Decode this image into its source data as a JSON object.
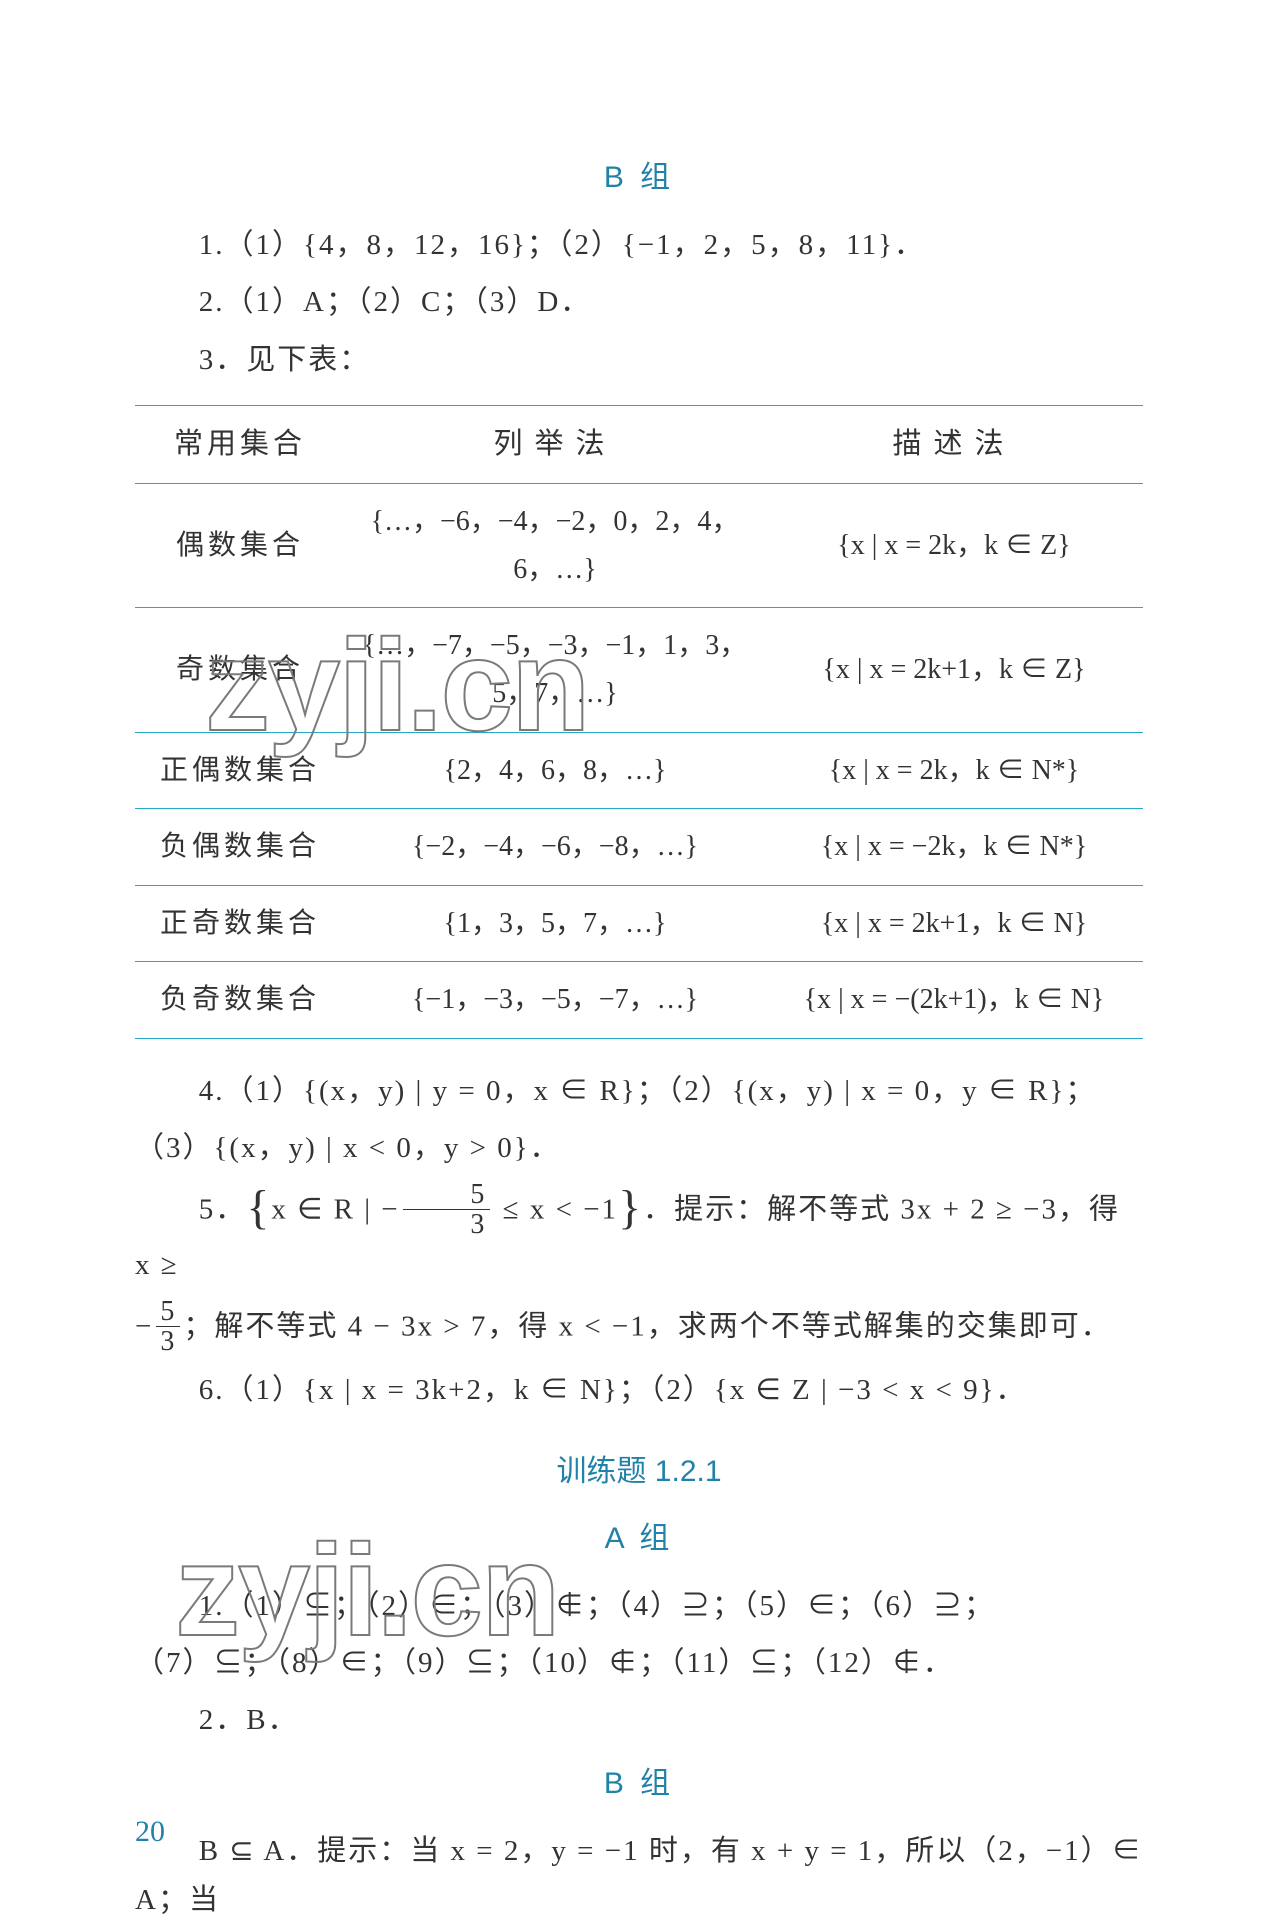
{
  "colors": {
    "accent": "#2082a8",
    "text": "#333333",
    "tableBorder": "#2aa6c7",
    "watermarkStroke": "#7a7a7a",
    "background": "#ffffff"
  },
  "sectionB": {
    "title": "B 组",
    "q1": "1.（1）{4，8，12，16}；（2）{−1，2，5，8，11}．",
    "q2": "2.（1）A；（2）C；（3）D．",
    "q3": "3．见下表："
  },
  "table": {
    "headers": {
      "c1": "常用集合",
      "c2": "列举法",
      "c3": "描述法"
    },
    "rows": [
      {
        "c1": "偶数集合",
        "c2": "{…，−6，−4，−2，0，2，4，6，…}",
        "c3": "{x | x = 2k，k ∈ Z}"
      },
      {
        "c1": "奇数集合",
        "c2": "{…，−7，−5，−3，−1，1，3，5，7，…}",
        "c3": "{x | x = 2k+1，k ∈ Z}"
      },
      {
        "c1": "正偶数集合",
        "c2": "{2，4，6，8，…}",
        "c3": "{x | x = 2k，k ∈ N*}"
      },
      {
        "c1": "负偶数集合",
        "c2": "{−2，−4，−6，−8，…}",
        "c3": "{x | x = −2k，k ∈ N*}"
      },
      {
        "c1": "正奇数集合",
        "c2": "{1，3，5，7，…}",
        "c3": "{x | x = 2k+1，k ∈ N}"
      },
      {
        "c1": "负奇数集合",
        "c2": "{−1，−3，−5，−7，…}",
        "c3": "{x | x = −(2k+1)，k ∈ N}"
      }
    ]
  },
  "q4_line1": "4.（1）{(x，y) | y = 0，x ∈ R}；（2）{(x，y) | x = 0，y ∈ R}；",
  "q4_line2": "（3）{(x，y) | x < 0，y > 0}．",
  "q5_prefix": "5．",
  "q5_set_open": "{",
  "q5_set_body_a": "x ∈ R | −",
  "q5_frac_num": "5",
  "q5_frac_den": "3",
  "q5_set_body_b": " ≤ x < −1",
  "q5_set_close": "}",
  "q5_after": "．提示：解不等式 3x + 2 ≥ −3，得 x ≥",
  "q5_line2_a": "−",
  "q5_line2_b": "；解不等式 4 − 3x > 7，得 x < −1，求两个不等式解集的交集即可．",
  "q6": "6.（1）{x | x = 3k+2，k ∈ N}；（2）{x ∈ Z | −3 < x < 9}．",
  "training": {
    "title": "训练题 1.2.1",
    "groupA": "A 组",
    "a1_line1": "1.（1）⊆；（2）∈；（3）∉；（4）⊇；（5）∈；（6）⊇；",
    "a1_line2": "（7）⊆；（8）∈；（9）⊆；（10）∉；（11）⊆；（12）∉．",
    "a2": "2．B．",
    "groupB": "B 组",
    "b_line": "B ⊆ A．提示：当 x = 2，y = −1 时，有 x + y = 1，所以（2，−1）∈ A；当"
  },
  "pageNumber": "20",
  "watermarkText": "zyji.cn"
}
